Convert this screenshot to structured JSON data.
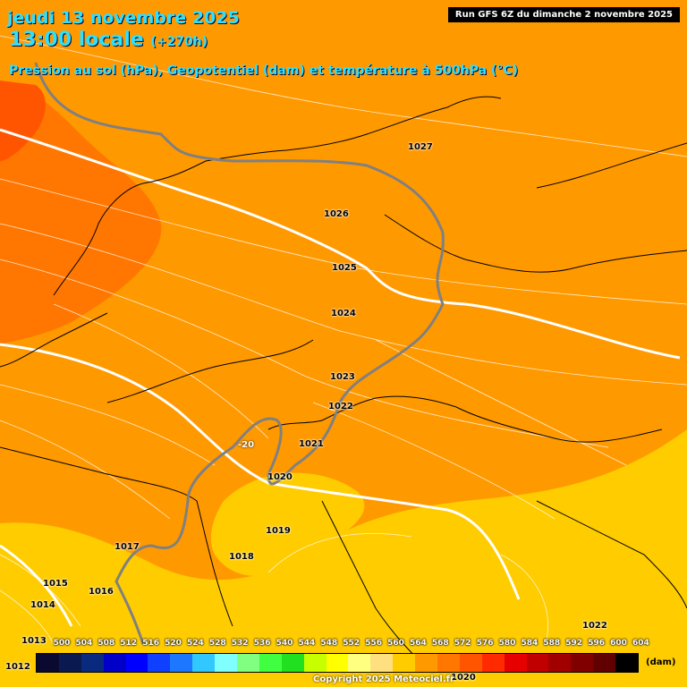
{
  "header": {
    "date": "jeudi 13 novembre 2025",
    "time": "13:00 locale",
    "offset": "(+270h)",
    "subtitle": "Pression au sol (hPa), Geopotentiel (dam) et température à 500hPa (°C)",
    "run": "Run GFS 6Z du dimanche 2 novembre 2025"
  },
  "isobar_labels": [
    "1027",
    "1026",
    "1025",
    "1024",
    "1023",
    "1022",
    "1021",
    "1020",
    "1019",
    "1018",
    "1017",
    "1016",
    "1015",
    "1014",
    "1013",
    "1012",
    "1022",
    "1020",
    "1020"
  ],
  "temperature_labels": [
    "-20"
  ],
  "legend": {
    "unit": "(dam)",
    "ticks": [
      "500",
      "504",
      "508",
      "512",
      "516",
      "520",
      "524",
      "528",
      "532",
      "536",
      "540",
      "544",
      "548",
      "552",
      "556",
      "560",
      "564",
      "568",
      "572",
      "576",
      "580",
      "584",
      "588",
      "592",
      "596",
      "600",
      "604"
    ],
    "colors": [
      "#0a0a30",
      "#0a1a50",
      "#0a2a80",
      "#0000c8",
      "#0000ff",
      "#1040ff",
      "#1e78ff",
      "#30c8ff",
      "#80ffff",
      "#80ff80",
      "#40ff40",
      "#20e020",
      "#c8ff00",
      "#ffff00",
      "#ffff80",
      "#ffe080",
      "#ffcc00",
      "#ff9900",
      "#ff7700",
      "#ff5500",
      "#ff2a00",
      "#e60000",
      "#c00000",
      "#a00000",
      "#800000",
      "#600000",
      "#000000"
    ]
  },
  "copyright": "Copyright 2025 Meteociel.fr"
}
